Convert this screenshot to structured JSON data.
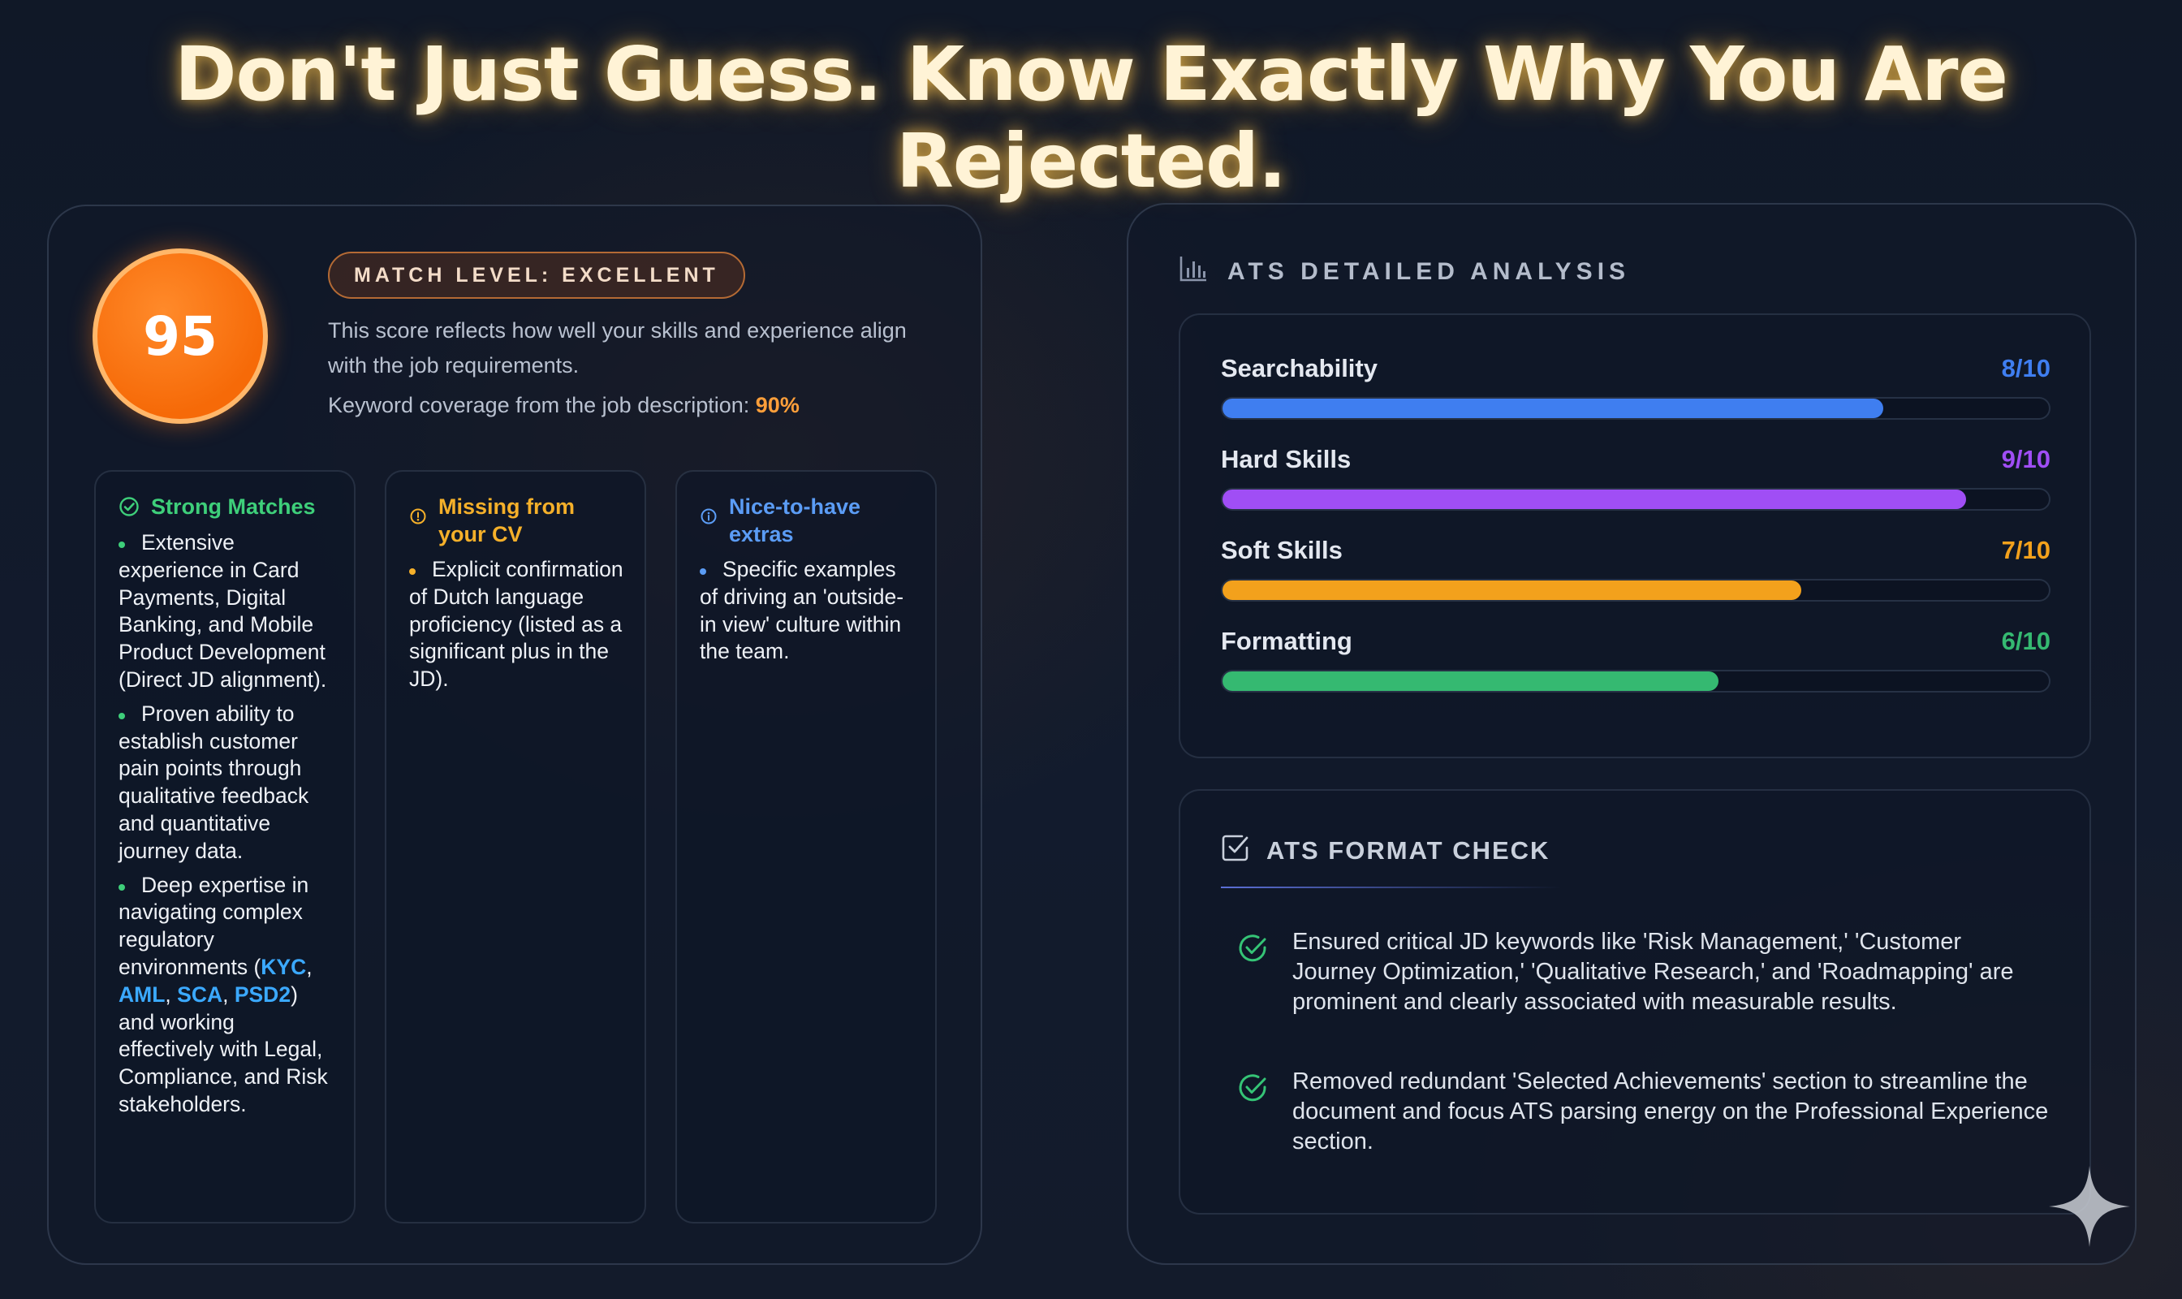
{
  "headline": "Don't Just Guess. Know Exactly Why You Are Rejected.",
  "score": {
    "value": "95",
    "badge": "MATCH LEVEL: EXCELLENT",
    "description": "This score reflects how well your skills and experience align with the job requirements.",
    "coverage_label": "Keyword coverage from the job description:",
    "coverage_value": "90%"
  },
  "columns": [
    {
      "title": "Strong Matches",
      "icon": "check-circle-icon",
      "color": "#3ecf7a",
      "items": [
        "Extensive experience in Card Payments, Digital Banking, and Mobile Product Development (Direct JD alignment).",
        "Proven ability to establish customer pain points through qualitative feedback and quantitative journey data.",
        "Deep expertise in navigating complex regulatory environments (KYC, AML, SCA, PSD2) and working effectively with Legal, Compliance, and Risk stakeholders."
      ]
    },
    {
      "title": "Missing from your CV",
      "icon": "alert-circle-icon",
      "color": "#f5b02a",
      "items": [
        "Explicit confirmation of Dutch language proficiency (listed as a significant plus in the JD)."
      ]
    },
    {
      "title": "Nice-to-have extras",
      "icon": "info-circle-icon",
      "color": "#5b9cf5",
      "items": [
        "Specific examples of driving an 'outside-in view' culture within the team."
      ]
    }
  ],
  "item3_parts": {
    "a": "Deep expertise in navigating complex regulatory environments (",
    "k1": "KYC",
    "s1": ", ",
    "k2": "AML",
    "s2": ", ",
    "k3": "SCA",
    "s3": ", ",
    "k4": "PSD2",
    "b": ") and working effectively with Legal, Compliance, and Risk stakeholders."
  },
  "ats": {
    "title": "ATS DETAILED ANALYSIS",
    "metrics": [
      {
        "label": "Searchability",
        "value": "8/10",
        "score": 8,
        "color": "#3f7ef0"
      },
      {
        "label": "Hard Skills",
        "value": "9/10",
        "score": 9,
        "color": "#a04ef5"
      },
      {
        "label": "Soft Skills",
        "value": "7/10",
        "score": 7,
        "color": "#f3a11c"
      },
      {
        "label": "Formatting",
        "value": "6/10",
        "score": 6,
        "color": "#35b971"
      }
    ]
  },
  "format_check": {
    "title": "ATS FORMAT CHECK",
    "items": [
      "Ensured critical JD keywords like 'Risk Management,' 'Customer Journey Optimization,' 'Qualitative Research,' and 'Roadmapping' are prominent and clearly associated with measurable results.",
      "Removed redundant 'Selected Achievements' section to streamline the document and focus ATS parsing energy on the Professional Experience section."
    ]
  }
}
